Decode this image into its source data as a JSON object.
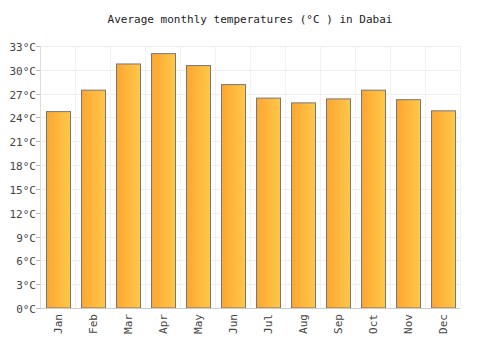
{
  "chart_data": {
    "type": "bar",
    "title": "Average monthly temperatures (°C ) in Dabai",
    "categories": [
      "Jan",
      "Feb",
      "Mar",
      "Apr",
      "May",
      "Jun",
      "Jul",
      "Aug",
      "Sep",
      "Oct",
      "Nov",
      "Dec"
    ],
    "values": [
      24.8,
      27.5,
      30.8,
      32.1,
      30.6,
      28.2,
      26.5,
      25.9,
      26.4,
      27.5,
      26.3,
      24.9
    ],
    "color": "#fca630",
    "ylim": [
      0,
      33
    ],
    "yticks": [
      {
        "value": 0,
        "label": "0°C"
      },
      {
        "value": 3,
        "label": "3°C"
      },
      {
        "value": 6,
        "label": "6°C"
      },
      {
        "value": 9,
        "label": "9°C"
      },
      {
        "value": 12,
        "label": "12°C"
      },
      {
        "value": 15,
        "label": "15°C"
      },
      {
        "value": 18,
        "label": "18°C"
      },
      {
        "value": 21,
        "label": "21°C"
      },
      {
        "value": 24,
        "label": "24°C"
      },
      {
        "value": 27,
        "label": "27°C"
      },
      {
        "value": 30,
        "label": "30°C"
      },
      {
        "value": 33,
        "label": "33°C"
      }
    ],
    "grid": true
  }
}
